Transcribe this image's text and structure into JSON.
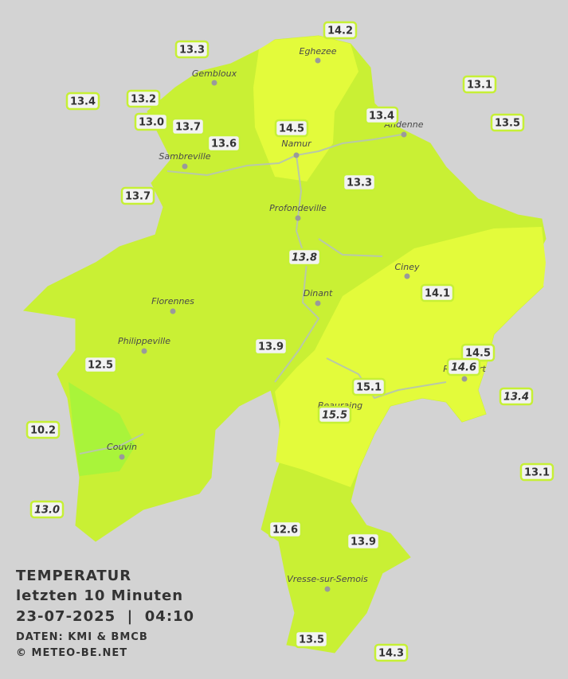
{
  "legend": {
    "title": "TEMPERATUR",
    "period": "letzten 10 Minuten",
    "datetime": "23-07-2025  |  04:10",
    "source": "DATEN: KMI & BMCB",
    "copyright": "© METEO-BE.NET"
  },
  "cities": [
    "Eghezee",
    "Gembloux",
    "Andenne",
    "Namur",
    "Sambreville",
    "Profondeville",
    "Ciney",
    "Dinant",
    "Florennes",
    "Philippeville",
    "Rochefort",
    "Beauraing",
    "Couvin",
    "Vresse-sur-Semois"
  ],
  "stations": [
    {
      "value": "14.2",
      "italic": false
    },
    {
      "value": "13.3",
      "italic": false
    },
    {
      "value": "13.1",
      "italic": false
    },
    {
      "value": "13.4",
      "italic": false
    },
    {
      "value": "13.2",
      "italic": false
    },
    {
      "value": "13.4",
      "italic": false
    },
    {
      "value": "13.5",
      "italic": false
    },
    {
      "value": "13.0",
      "italic": false
    },
    {
      "value": "13.7",
      "italic": false
    },
    {
      "value": "14.5",
      "italic": false
    },
    {
      "value": "13.6",
      "italic": false
    },
    {
      "value": "13.3",
      "italic": false
    },
    {
      "value": "13.7",
      "italic": false
    },
    {
      "value": "13.8",
      "italic": true
    },
    {
      "value": "14.1",
      "italic": false
    },
    {
      "value": "13.9",
      "italic": false
    },
    {
      "value": "14.5",
      "italic": false
    },
    {
      "value": "14.6",
      "italic": true
    },
    {
      "value": "12.5",
      "italic": false
    },
    {
      "value": "15.1",
      "italic": false
    },
    {
      "value": "13.4",
      "italic": true
    },
    {
      "value": "15.5",
      "italic": true
    },
    {
      "value": "10.2",
      "italic": false
    },
    {
      "value": "13.1",
      "italic": false
    },
    {
      "value": "13.0",
      "italic": true
    },
    {
      "value": "12.6",
      "italic": false
    },
    {
      "value": "13.9",
      "italic": false
    },
    {
      "value": "13.5",
      "italic": false
    },
    {
      "value": "14.3",
      "italic": false
    }
  ]
}
